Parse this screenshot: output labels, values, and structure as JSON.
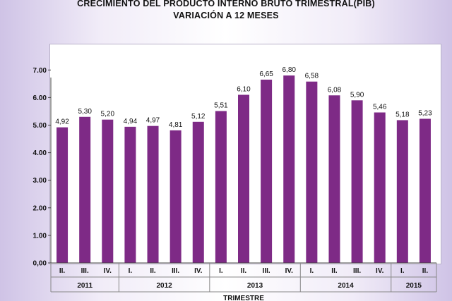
{
  "title_line1": "CRECIMIENTO DEL PRODUCTO INTERNO BRUTO TRIMESTRAL(PIB)",
  "title_line2": "VARIACIÓN A 12 MESES",
  "chart_data": {
    "type": "bar",
    "title": "CRECIMIENTO DEL PRODUCTO INTERNO BRUTO TRIMESTRAL(PIB) VARIACIÓN A 12 MESES",
    "xlabel": "TRIMESTRE",
    "ylabel": "",
    "ylim": [
      0,
      7
    ],
    "yticks": [
      "0,00",
      "1.00",
      "2.00",
      "3.00",
      "4.00",
      "5.00",
      "6.00",
      "7.00"
    ],
    "grid": false,
    "bar_color": "#7e2a86",
    "categories": [
      "II.",
      "III.",
      "IV.",
      "I.",
      "II.",
      "III.",
      "IV.",
      "I.",
      "II.",
      "III.",
      "IV.",
      "I.",
      "II.",
      "III.",
      "IV.",
      "I.",
      "II."
    ],
    "years": [
      {
        "label": "2011",
        "count": 3
      },
      {
        "label": "2012",
        "count": 4
      },
      {
        "label": "2013",
        "count": 4
      },
      {
        "label": "2014",
        "count": 4
      },
      {
        "label": "2015",
        "count": 2
      }
    ],
    "values": [
      4.92,
      5.3,
      5.2,
      4.94,
      4.97,
      4.81,
      5.12,
      5.51,
      6.1,
      6.65,
      6.8,
      6.58,
      6.08,
      5.9,
      5.46,
      5.18,
      5.23
    ],
    "value_labels": [
      "4,92",
      "5,30",
      "5,20",
      "4,94",
      "4,97",
      "4,81",
      "5,12",
      "5,51",
      "6,10",
      "6,65",
      "6,80",
      "6,58",
      "6,08",
      "5,90",
      "5,46",
      "5,18",
      "5,23"
    ]
  }
}
